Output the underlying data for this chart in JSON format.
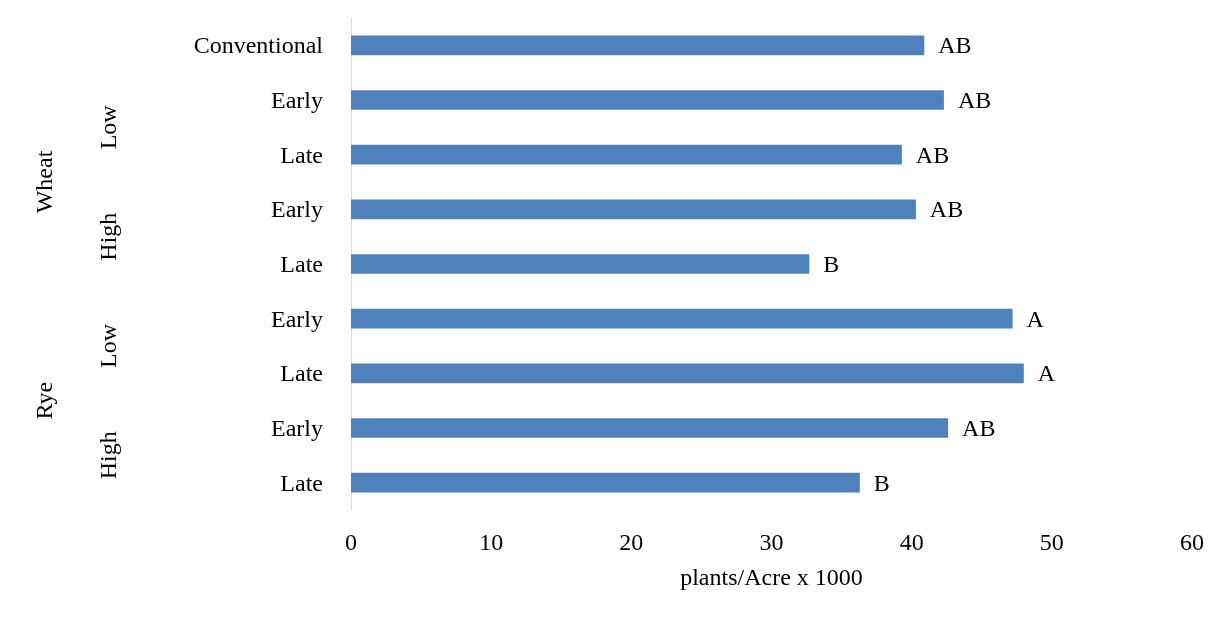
{
  "chart_data": {
    "type": "bar",
    "orientation": "horizontal",
    "xlabel": "plants/Acre x 1000",
    "categories": [
      "Conventional",
      "Early",
      "Late",
      "Early",
      "Late",
      "Early",
      "Late",
      "Early",
      "Late"
    ],
    "values": [
      40.9,
      42.3,
      39.3,
      40.3,
      32.7,
      47.2,
      48.0,
      42.6,
      36.3
    ],
    "value_labels": [
      "AB",
      "AB",
      "AB",
      "AB",
      "B",
      "A",
      "A",
      "AB",
      "B"
    ],
    "color": "#4f81bd",
    "xlim": [
      0,
      60
    ],
    "xticks": [
      0,
      10,
      20,
      30,
      40,
      50,
      60
    ],
    "grid": false,
    "annotations": [
      "Wheat",
      "Low",
      "High",
      "Rye",
      "Low",
      "High"
    ]
  }
}
